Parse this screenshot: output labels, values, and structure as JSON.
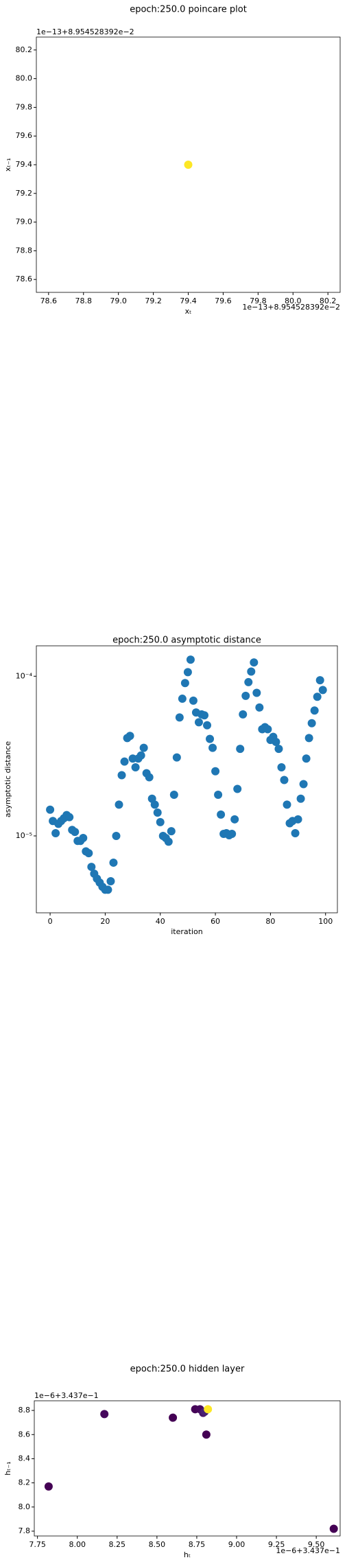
{
  "chart_data": [
    {
      "type": "scatter",
      "title": "epoch:250.0 poincare plot",
      "xlabel": "xₜ",
      "ylabel": "xₜ₋₁",
      "x_offset": "1e−13+8.954528392e−2",
      "y_offset": "1e−13+8.954528392e−2",
      "x": [
        79.4
      ],
      "y": [
        79.4
      ],
      "colors": [
        "#fde725"
      ],
      "xlim": [
        78.53,
        80.27
      ],
      "ylim": [
        78.51,
        80.29
      ],
      "xticks": [
        78.6,
        78.8,
        {
          "value": 79.0,
          "label": "79.0"
        },
        79.2,
        79.4,
        79.6,
        79.8,
        {
          "value": 80.0,
          "label": "80.0"
        },
        80.2
      ],
      "yticks": [
        78.6,
        78.8,
        {
          "value": 79.0,
          "label": "79.0"
        },
        79.2,
        79.4,
        79.6,
        79.8,
        {
          "value": 80.0,
          "label": "80.0"
        },
        80.2
      ]
    },
    {
      "type": "scatter",
      "title": "epoch:250.0 asymptotic distance",
      "xlabel": "iteration",
      "ylabel": "asymptotic distance",
      "yscale": "log",
      "color": "#1f77b4",
      "x": [
        0,
        1,
        2,
        3,
        4,
        5,
        6,
        7,
        8,
        9,
        10,
        11,
        12,
        13,
        14,
        15,
        16,
        17,
        18,
        19,
        20,
        21,
        22,
        23,
        24,
        25,
        26,
        27,
        28,
        29,
        30,
        31,
        32,
        33,
        34,
        35,
        36,
        37,
        38,
        39,
        40,
        41,
        42,
        43,
        44,
        45,
        46,
        47,
        48,
        49,
        50,
        51,
        52,
        53,
        54,
        55,
        56,
        57,
        58,
        59,
        60,
        61,
        62,
        63,
        64,
        65,
        66,
        67,
        68,
        69,
        70,
        71,
        72,
        73,
        74,
        75,
        76,
        77,
        78,
        79,
        80,
        81,
        82,
        83,
        84,
        85,
        86,
        87,
        88,
        89,
        90,
        91,
        92,
        93,
        94,
        95,
        96,
        97,
        98,
        99
      ],
      "y": [
        1.46e-05,
        1.24e-05,
        1.04e-05,
        1.19e-05,
        1.24e-05,
        1.29e-05,
        1.35e-05,
        1.31e-05,
        1.09e-05,
        1.06e-05,
        9.3e-06,
        9.3e-06,
        9.7e-06,
        8e-06,
        7.8e-06,
        6.4e-06,
        5.8e-06,
        5.4e-06,
        5.1e-06,
        4.8e-06,
        4.6e-06,
        4.6e-06,
        5.2e-06,
        6.8e-06,
        1e-05,
        1.57e-05,
        2.4e-05,
        2.92e-05,
        4.1e-05,
        4.23e-05,
        3.05e-05,
        2.69e-05,
        3.05e-05,
        3.19e-05,
        3.56e-05,
        2.47e-05,
        2.33e-05,
        1.71e-05,
        1.57e-05,
        1.4e-05,
        1.22e-05,
        1e-05,
        9.7e-06,
        9.2e-06,
        1.07e-05,
        1.81e-05,
        3.1e-05,
        5.52e-05,
        7.23e-05,
        9.06e-05,
        0.000106,
        0.000127,
        7.03e-05,
        5.93e-05,
        5.15e-05,
        5.77e-05,
        5.69e-05,
        4.93e-05,
        4.05e-05,
        3.56e-05,
        2.54e-05,
        1.81e-05,
        1.36e-05,
        1.03e-05,
        1.04e-05,
        1.01e-05,
        1.03e-05,
        1.27e-05,
        1.97e-05,
        3.51e-05,
        5.77e-05,
        7.54e-05,
        9.18e-05,
        0.000107,
        0.000122,
        7.87e-05,
        6.37e-05,
        4.66e-05,
        4.8e-05,
        4.66e-05,
        3.99e-05,
        4.17e-05,
        3.88e-05,
        3.51e-05,
        2.69e-05,
        2.24e-05,
        1.57e-05,
        1.2e-05,
        1.24e-05,
        1.04e-05,
        1.27e-05,
        1.71e-05,
        2.11e-05,
        3.05e-05,
        4.1e-05,
        5.08e-05,
        6.1e-05,
        7.43e-05,
        9.44e-05,
        8.2e-05
      ],
      "xlim": [
        -5,
        104.3
      ],
      "ylim": [
        3.3e-06,
        0.000155
      ],
      "xticks": [
        0,
        20,
        40,
        60,
        80,
        100
      ],
      "yticks": [
        {
          "value": 0.0001,
          "label": "10⁻⁴"
        },
        {
          "value": 1e-05,
          "label": "10⁻⁵"
        }
      ]
    },
    {
      "type": "scatter",
      "title": "epoch:250.0 hidden layer",
      "xlabel": "hₜ",
      "ylabel": "hₜ₋₁",
      "x_offset": "1e−6+3.437e−1",
      "y_offset": "1e−6+3.437e−1",
      "x": [
        7.82,
        8.17,
        8.6,
        8.74,
        8.77,
        8.79,
        8.8,
        8.81,
        8.82
      ],
      "y": [
        8.17,
        8.77,
        8.74,
        8.81,
        8.81,
        8.78,
        8.79,
        8.6,
        8.81
      ],
      "colors": [
        "#440154",
        "#46085c",
        "#440154",
        "#450457",
        "#46085c",
        "#481668",
        "#482173",
        "#440154",
        "#fde725"
      ],
      "x_extra": [
        9.61
      ],
      "y_extra": [
        7.82
      ],
      "xlim": [
        7.73,
        9.65
      ],
      "ylim": [
        7.76,
        8.88
      ],
      "xticks": [
        7.75,
        {
          "value": 8.0,
          "label": "8.00"
        },
        8.25,
        {
          "value": 8.5,
          "label": "8.50"
        },
        8.75,
        {
          "value": 9.0,
          "label": "9.00"
        },
        9.25,
        {
          "value": 9.5,
          "label": "9.50"
        }
      ],
      "yticks": [
        7.8,
        {
          "value": 8.0,
          "label": "8.0"
        },
        8.2,
        8.4,
        8.6,
        8.8
      ]
    }
  ]
}
